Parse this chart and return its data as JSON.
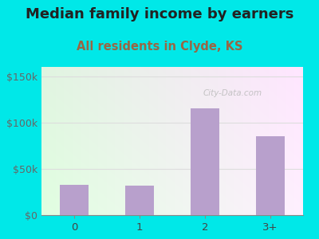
{
  "title": "Median family income by earners",
  "subtitle": "All residents in Clyde, KS",
  "categories": [
    "0",
    "1",
    "2",
    "3+"
  ],
  "values": [
    33000,
    31500,
    115000,
    85000
  ],
  "bar_color": "#b8a0cc",
  "title_fontsize": 13,
  "subtitle_fontsize": 10.5,
  "subtitle_color": "#996644",
  "title_color": "#222222",
  "background_outer": "#00e8e8",
  "bg_top_left": "#d0eedd",
  "bg_top_right": "#eaf5f5",
  "bg_bottom_left": "#dff2e8",
  "bg_bottom_right": "#f5f8f5",
  "ylim": [
    0,
    160000
  ],
  "yticks": [
    0,
    50000,
    100000,
    150000
  ],
  "ytick_labels": [
    "$0",
    "$50k",
    "$100k",
    "$150k"
  ],
  "watermark": "City-Data.com",
  "watermark_color": "#bbbbbb",
  "grid_color": "#dddddd"
}
